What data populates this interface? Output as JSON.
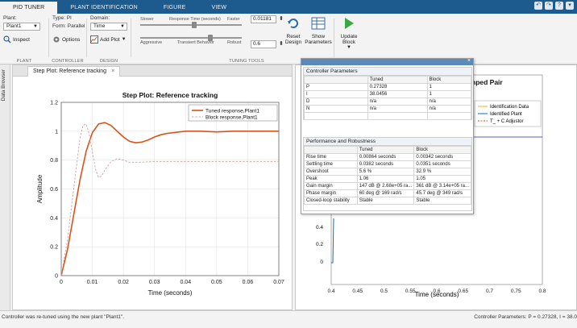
{
  "tabs": [
    "PID TUNER",
    "PLANT IDENTIFICATION",
    "FIGURE",
    "VIEW"
  ],
  "ribbon": {
    "plant_label": "Plant:",
    "plant_value": "Plant1",
    "type_label": "Type: PI",
    "form_label": "Form: Parallel",
    "domain_label": "Domain:",
    "domain_value": "Time",
    "inspect_label": "Inspect",
    "options_label": "Options",
    "add_plot_label": "Add Plot",
    "slider1_left": "Slower",
    "slider1_mid": "Response Time (seconds)",
    "slider1_right": "Faster",
    "slider2_left": "Aggressive",
    "slider2_mid": "Transient Behavior",
    "slider2_right": "Robust",
    "resp_time_value": "0.01181",
    "transient_value": "0.6",
    "reset_design": "Reset Design",
    "show_parameters": "Show Parameters",
    "update_block": "Update Block",
    "sections": [
      "PLANT",
      "CONTROLLER",
      "DESIGN",
      "TUNING TOOLS"
    ]
  },
  "side_label": "Data Browser",
  "doc_tab": "Step Plot: Reference tracking",
  "ctrl": {
    "params_header": "Controller Parameters",
    "params_cols": [
      "",
      "Tuned",
      "Block"
    ],
    "params_rows": [
      [
        "P",
        "0.27328",
        "1"
      ],
      [
        "I",
        "38.0456",
        "1"
      ],
      [
        "D",
        "n/a",
        "n/a"
      ],
      [
        "N",
        "n/a",
        "n/a"
      ],
      [
        "",
        "",
        ""
      ]
    ],
    "perf_header": "Performance and Robustness",
    "perf_cols": [
      "",
      "Tuned",
      "Block"
    ],
    "perf_rows": [
      [
        "Rise time",
        "0.00864 seconds",
        "0.00342 seconds"
      ],
      [
        "Settling time",
        "0.0382 seconds",
        "0.0351 seconds"
      ],
      [
        "Overshoot",
        "5.6 %",
        "32.9 %"
      ],
      [
        "Peak",
        "1.06",
        "1.05"
      ],
      [
        "Gain margin",
        "147 dB @ 2.68e+05 ra...",
        "361 dB @ 3.14e+05 ra..."
      ],
      [
        "Phase margin",
        "60 deg @ 169 rad/s",
        "45.7 deg @ 349 rad/s"
      ],
      [
        "Closed-loop stability",
        "Stable",
        "Stable"
      ]
    ]
  },
  "right_plot": {
    "title_fragment": "nped Pair",
    "legend": [
      "Identification Data",
      "Identified Plant",
      "T_ + C Adjustor"
    ],
    "xlabel": "Time (seconds)",
    "xticks": [
      "0.4",
      "0.45",
      "0.5",
      "0.55",
      "0.6",
      "0.65",
      "0.7",
      "0.75",
      "0.8"
    ],
    "yticks": [
      "0.4",
      "0.2",
      "0"
    ]
  },
  "status_left": "Controller was re-tuned using the new plant \"Plant1\".",
  "status_right": "Controller Parameters: P = 0.27328, I = 38.0",
  "chart_data": {
    "type": "line",
    "title": "Step Plot: Reference tracking",
    "xlabel": "Time (seconds)",
    "ylabel": "Amplitude",
    "xlim": [
      0,
      0.07
    ],
    "ylim": [
      0,
      1.2
    ],
    "xticks": [
      0,
      0.01,
      0.02,
      0.03,
      0.04,
      0.05,
      0.06,
      0.07
    ],
    "yticks": [
      0,
      0.2,
      0.4,
      0.6,
      0.8,
      1,
      1.2
    ],
    "grid": true,
    "legend_position": "top-right",
    "series": [
      {
        "name": "Tuned response,Plant1",
        "color": "#d95319",
        "style": "solid",
        "x": [
          0,
          0.002,
          0.004,
          0.006,
          0.008,
          0.01,
          0.012,
          0.014,
          0.016,
          0.018,
          0.02,
          0.022,
          0.024,
          0.026,
          0.028,
          0.03,
          0.032,
          0.034,
          0.036,
          0.038,
          0.04,
          0.045,
          0.05,
          0.055,
          0.06,
          0.065,
          0.07
        ],
        "y": [
          0,
          0.18,
          0.42,
          0.66,
          0.86,
          0.99,
          1.05,
          1.06,
          1.04,
          1.0,
          0.96,
          0.93,
          0.92,
          0.925,
          0.94,
          0.96,
          0.975,
          0.985,
          0.99,
          0.995,
          1.0,
          1.0,
          0.995,
          1.0,
          1.0,
          1.0,
          1.0
        ]
      },
      {
        "name": "Block response,Plant1",
        "color": "#d0a0a0",
        "style": "dashed",
        "x": [
          0,
          0.002,
          0.004,
          0.006,
          0.007,
          0.008,
          0.009,
          0.01,
          0.011,
          0.012,
          0.013,
          0.014,
          0.016,
          0.018,
          0.02,
          0.022,
          0.025,
          0.03,
          0.035,
          0.04,
          0.05,
          0.06,
          0.07
        ],
        "y": [
          0,
          0.25,
          0.6,
          0.95,
          1.04,
          1.05,
          0.98,
          0.86,
          0.74,
          0.68,
          0.69,
          0.73,
          0.79,
          0.81,
          0.8,
          0.785,
          0.785,
          0.79,
          0.79,
          0.79,
          0.79,
          0.79,
          0.79
        ]
      }
    ]
  }
}
